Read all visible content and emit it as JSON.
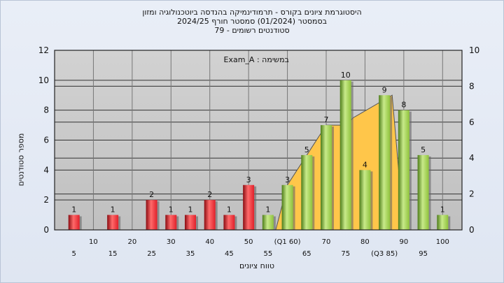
{
  "header": {
    "title_line1": "היסטוגרמת ציונים בקורס - תרמודינמיקה בהנדסה ביוטכנולוגיה ומזון",
    "title_line2": "בסמסטר  (01/2024)  סמסטר חורף 2024/25",
    "title_line3": "סטודנטים רשומים - 79"
  },
  "colors": {
    "plot_background": "#c0c0c0",
    "red_bar": "#e0202a",
    "green_bar": "#8fc23c",
    "area": "#ffc64a"
  },
  "chart_data": {
    "type": "bar",
    "annotation": "במשימה : Exam_A",
    "xlabel": "טווח ציונים",
    "ylabel": "מספר סטודנטים",
    "ylim": [
      0,
      12
    ],
    "y_ticks": [
      0,
      2,
      4,
      6,
      8,
      10,
      12
    ],
    "y2lim": [
      0,
      10
    ],
    "y2_ticks": [
      0,
      2,
      4,
      6,
      8,
      10
    ],
    "grid": true,
    "x_tick_labels_upper": [
      "10",
      "20",
      "30",
      "40",
      "50",
      "(Q1 60)",
      "70",
      "80",
      "90",
      "100"
    ],
    "x_tick_labels_lower": [
      "5",
      "15",
      "25",
      "35",
      "45",
      "55",
      "65",
      "75",
      "(Q3 85)",
      "95"
    ],
    "bars": [
      {
        "x": 5,
        "value": 1,
        "label": "1",
        "group": "fail"
      },
      {
        "x": 15,
        "value": 1,
        "label": "1",
        "group": "fail"
      },
      {
        "x": 25,
        "value": 2,
        "label": "2",
        "group": "fail"
      },
      {
        "x": 30,
        "value": 1,
        "label": "1",
        "group": "fail"
      },
      {
        "x": 35,
        "value": 1,
        "label": "1",
        "group": "fail"
      },
      {
        "x": 40,
        "value": 2,
        "label": "2",
        "group": "fail"
      },
      {
        "x": 45,
        "value": 1,
        "label": "1",
        "group": "fail"
      },
      {
        "x": 50,
        "value": 3,
        "label": "3",
        "group": "fail"
      },
      {
        "x": 55,
        "value": 1,
        "label": "1",
        "group": "pass"
      },
      {
        "x": 60,
        "value": 3,
        "label": "3",
        "group": "pass"
      },
      {
        "x": 65,
        "value": 5,
        "label": "5",
        "group": "pass"
      },
      {
        "x": 70,
        "value": 7,
        "label": "7",
        "group": "pass"
      },
      {
        "x": 75,
        "value": 10,
        "label": "10",
        "group": "pass"
      },
      {
        "x": 80,
        "value": 4,
        "label": "4",
        "group": "pass"
      },
      {
        "x": 85,
        "value": 9,
        "label": "9",
        "group": "pass"
      },
      {
        "x": 90,
        "value": 8,
        "label": "8",
        "group": "pass"
      },
      {
        "x": 95,
        "value": 5,
        "label": "5",
        "group": "pass"
      },
      {
        "x": 100,
        "value": 1,
        "label": "1",
        "group": "pass"
      }
    ],
    "quartile_area": [
      {
        "x": 57,
        "y": 0
      },
      {
        "x": 60,
        "y": 3
      },
      {
        "x": 65,
        "y": 5
      },
      {
        "x": 70,
        "y": 7
      },
      {
        "x": 75,
        "y": 7
      },
      {
        "x": 77,
        "y": 7.5
      },
      {
        "x": 87,
        "y": 9
      },
      {
        "x": 89,
        "y": 3
      },
      {
        "x": 89,
        "y": 0
      }
    ]
  }
}
